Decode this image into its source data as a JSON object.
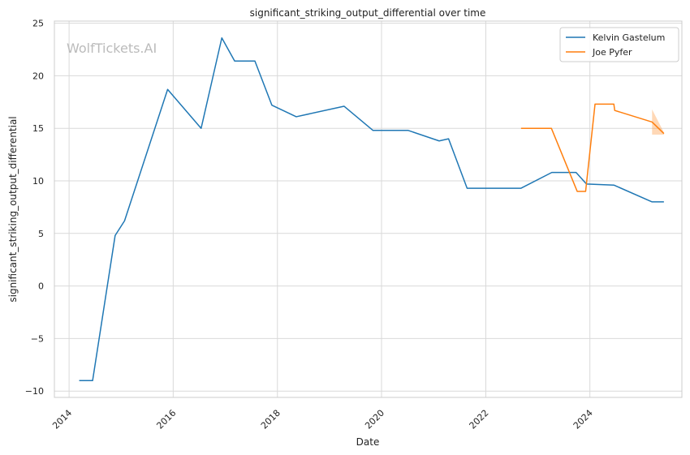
{
  "chart_data": {
    "type": "line",
    "title": "significant_striking_output_differential over time",
    "xlabel": "Date",
    "ylabel": "significant_striking_output_differential",
    "watermark": "WolfTickets.AI",
    "x_range": [
      "2013-09-20",
      "2025-10-07"
    ],
    "ylim": [
      -10.6,
      25.2
    ],
    "x_ticks": [
      "2014-01-01",
      "2016-01-01",
      "2018-01-01",
      "2020-01-01",
      "2022-01-01",
      "2024-01-01"
    ],
    "x_tick_labels": [
      "2014",
      "2016",
      "2018",
      "2020",
      "2022",
      "2024"
    ],
    "y_ticks": [
      -10,
      -5,
      0,
      5,
      10,
      15,
      20,
      25
    ],
    "y_tick_labels": [
      "−10",
      "−5",
      "0",
      "5",
      "10",
      "15",
      "20",
      "25"
    ],
    "grid": true,
    "legend_position": "top-right",
    "series": [
      {
        "name": "Kelvin Gastelum",
        "color": "#1f77b4",
        "points": [
          [
            "2014-03-13",
            -9.0
          ],
          [
            "2014-06-15",
            -9.0
          ],
          [
            "2014-11-20",
            4.8
          ],
          [
            "2015-01-25",
            6.2
          ],
          [
            "2015-11-23",
            18.7
          ],
          [
            "2016-07-15",
            15.0
          ],
          [
            "2016-12-07",
            23.6
          ],
          [
            "2017-03-07",
            21.4
          ],
          [
            "2017-07-27",
            21.4
          ],
          [
            "2017-11-23",
            17.2
          ],
          [
            "2018-05-13",
            16.1
          ],
          [
            "2019-04-13",
            17.1
          ],
          [
            "2019-11-02",
            14.8
          ],
          [
            "2020-07-06",
            14.8
          ],
          [
            "2021-02-08",
            13.8
          ],
          [
            "2021-04-15",
            14.0
          ],
          [
            "2021-08-23",
            9.3
          ],
          [
            "2022-09-05",
            9.3
          ],
          [
            "2023-04-09",
            10.8
          ],
          [
            "2023-09-26",
            10.8
          ],
          [
            "2023-12-08",
            9.7
          ],
          [
            "2024-06-17",
            9.6
          ],
          [
            "2025-03-12",
            8.0
          ],
          [
            "2025-06-03",
            8.0
          ]
        ]
      },
      {
        "name": "Joe Pyfer",
        "color": "#ff7f0e",
        "points": [
          [
            "2022-09-05",
            15.0
          ],
          [
            "2023-04-06",
            15.0
          ],
          [
            "2023-10-04",
            9.0
          ],
          [
            "2023-12-02",
            9.0
          ],
          [
            "2024-02-06",
            17.3
          ],
          [
            "2024-06-17",
            17.3
          ],
          [
            "2024-06-23",
            16.7
          ],
          [
            "2025-03-12",
            15.6
          ],
          [
            "2025-06-03",
            14.5
          ]
        ],
        "band": [
          [
            "2025-03-12",
            14.4,
            16.8
          ],
          [
            "2025-06-03",
            14.4,
            14.6
          ]
        ]
      }
    ]
  }
}
